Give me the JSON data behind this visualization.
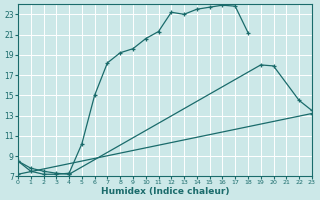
{
  "xlabel": "Humidex (Indice chaleur)",
  "bg_color": "#cce8e8",
  "grid_color": "#ffffff",
  "line_color": "#1a6b6b",
  "xlim": [
    0,
    23
  ],
  "ylim": [
    7,
    24
  ],
  "xticks": [
    0,
    1,
    2,
    3,
    4,
    5,
    6,
    7,
    8,
    9,
    10,
    11,
    12,
    13,
    14,
    15,
    16,
    17,
    18,
    19,
    20,
    21,
    22,
    23
  ],
  "yticks": [
    7,
    9,
    11,
    13,
    15,
    17,
    19,
    21,
    23
  ],
  "curve1_x": [
    0,
    1,
    2,
    3,
    4,
    5,
    6,
    7,
    8,
    9,
    10,
    11,
    12,
    13,
    14,
    15,
    16,
    17,
    18
  ],
  "curve1_y": [
    8.5,
    7.5,
    7.2,
    7.2,
    7.3,
    10.2,
    15.0,
    18.2,
    19.2,
    19.6,
    20.6,
    21.3,
    23.2,
    23.0,
    23.5,
    23.7,
    23.9,
    23.8,
    21.2
  ],
  "curve2_x": [
    0,
    1,
    2,
    3,
    4,
    19,
    20,
    22,
    23
  ],
  "curve2_y": [
    8.5,
    7.8,
    7.5,
    7.3,
    7.2,
    18.0,
    17.9,
    14.5,
    13.5
  ],
  "curve2_break": 4,
  "curve3_x": [
    0,
    23
  ],
  "curve3_y": [
    7.2,
    13.2
  ]
}
